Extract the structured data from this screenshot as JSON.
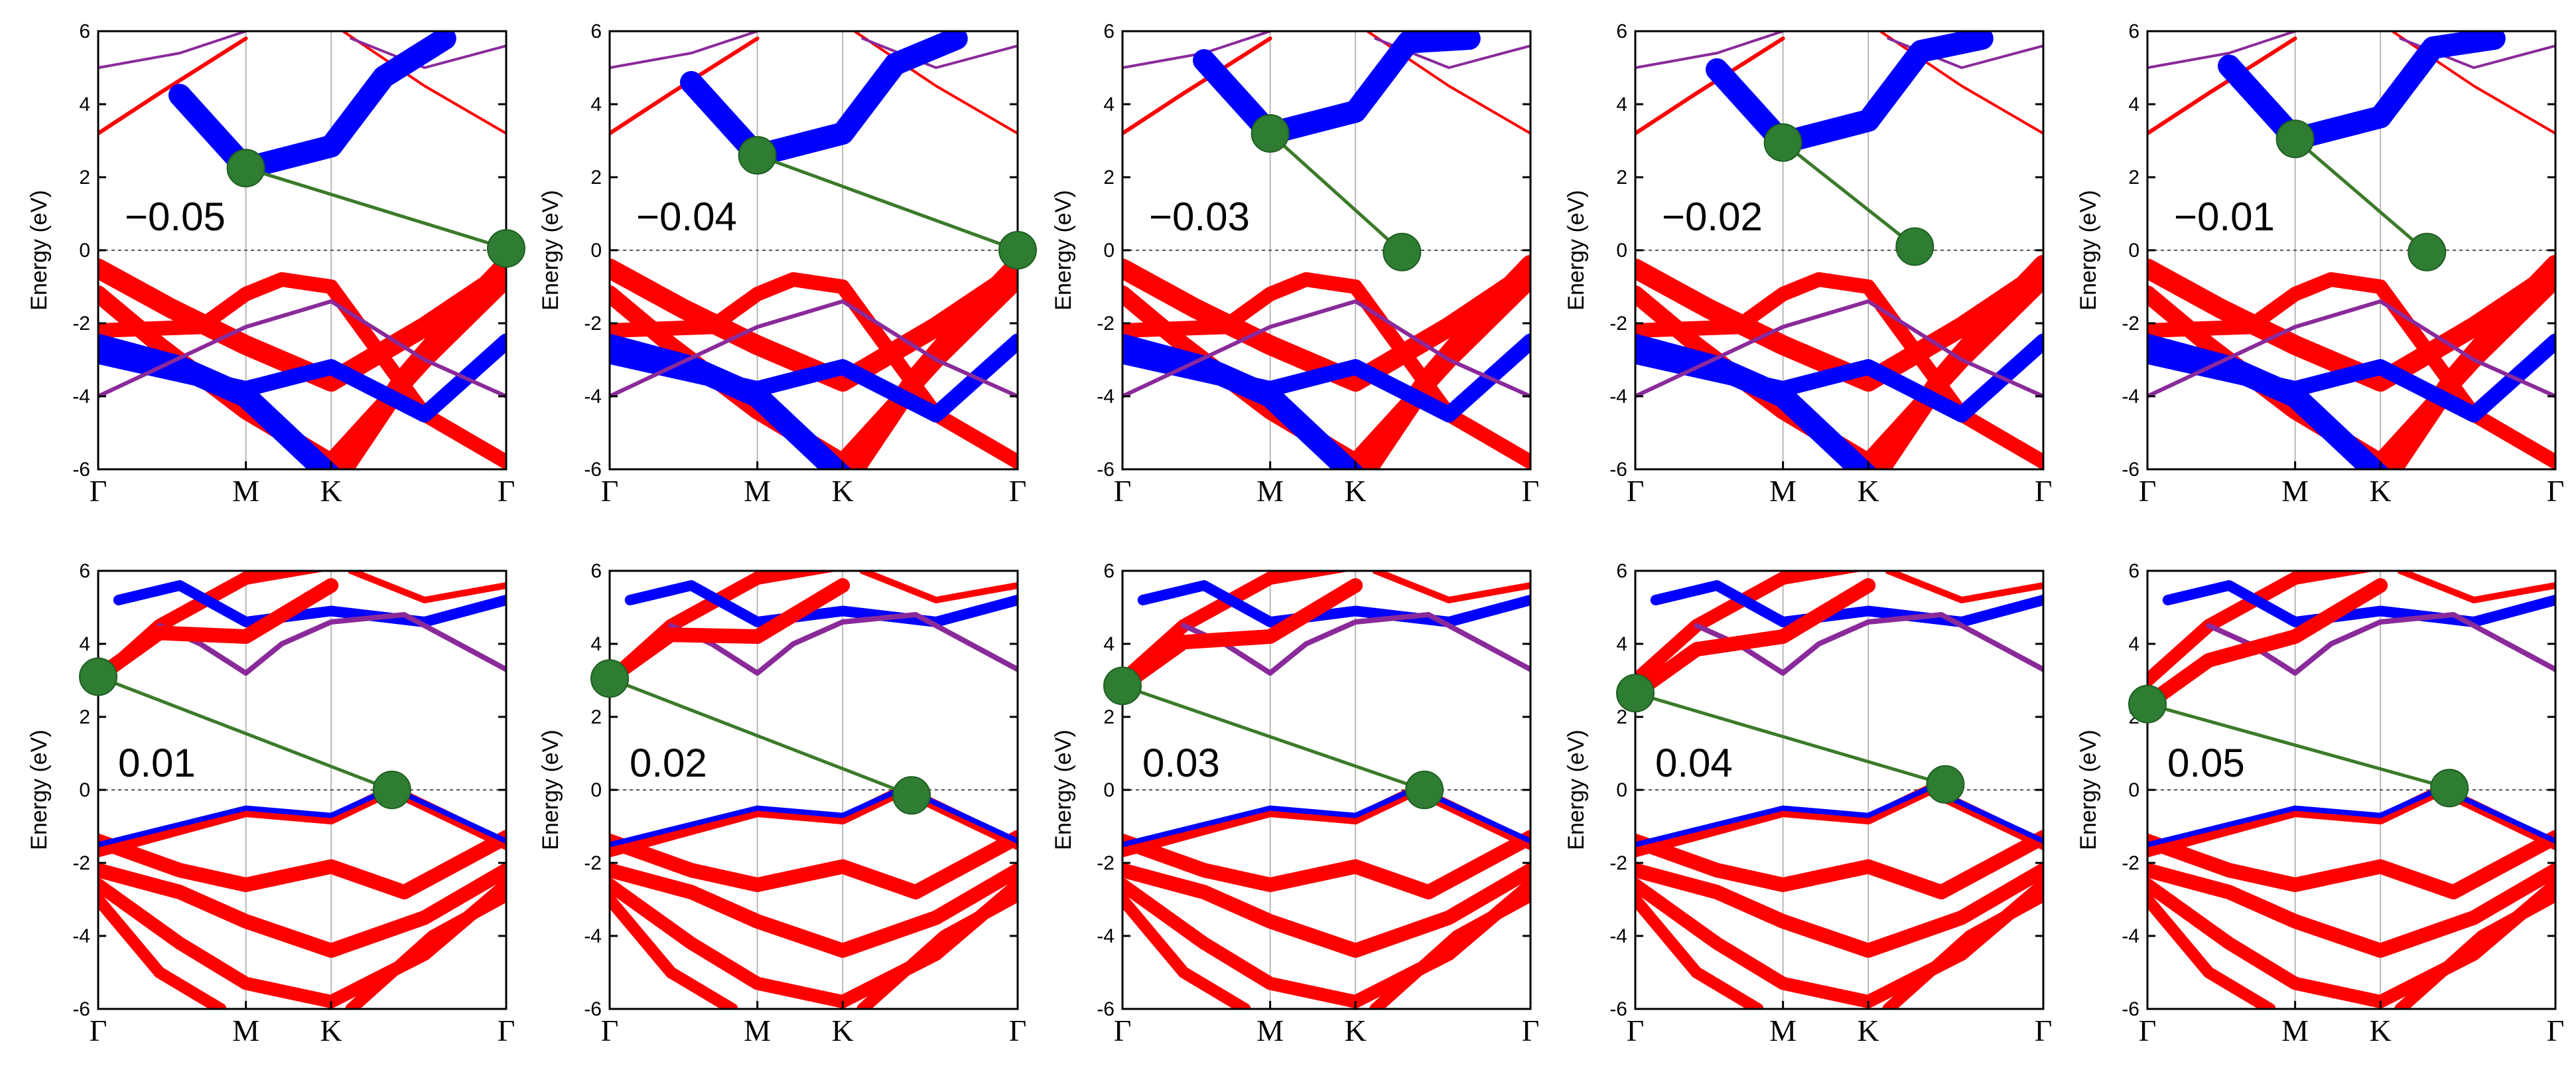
{
  "figure": {
    "rows": 2,
    "cols": 5
  },
  "chart_data": {
    "type": "line",
    "ylabel": "Energy (eV)",
    "ylim": [
      -6,
      6
    ],
    "yticks": [
      -6,
      -4,
      -2,
      0,
      2,
      4,
      6
    ],
    "ytick_labels": [
      "-6",
      "-4",
      "-2",
      "0",
      "2",
      "4",
      "6"
    ],
    "xticks": [
      "Γ",
      "M",
      "K",
      "Γ"
    ],
    "xtick_positions": [
      0,
      0.362,
      0.571,
      1
    ],
    "fermi_level": 0,
    "colors": {
      "band_a": "#ff0000",
      "band_b": "#0000ff",
      "transition": "#3b7a2a",
      "marker": "#2e7d32"
    },
    "panels": [
      {
        "label": "−0.05",
        "vbm": [
          1.0,
          0.05
        ],
        "cbm": [
          0.362,
          2.25
        ]
      },
      {
        "label": "−0.04",
        "vbm": [
          1.0,
          0.0
        ],
        "cbm": [
          0.362,
          2.6
        ]
      },
      {
        "label": "−0.03",
        "vbm": [
          0.685,
          -0.05
        ],
        "cbm": [
          0.362,
          3.2
        ]
      },
      {
        "label": "−0.02",
        "vbm": [
          0.685,
          0.1
        ],
        "cbm": [
          0.362,
          2.95
        ]
      },
      {
        "label": "−0.01",
        "vbm": [
          0.685,
          -0.05
        ],
        "cbm": [
          0.362,
          3.05
        ]
      },
      {
        "label": "0.01",
        "vbm": [
          0.72,
          0.0
        ],
        "cbm": [
          0.0,
          3.1
        ]
      },
      {
        "label": "0.02",
        "vbm": [
          0.74,
          -0.15
        ],
        "cbm": [
          0.0,
          3.05
        ]
      },
      {
        "label": "0.03",
        "vbm": [
          0.74,
          0.0
        ],
        "cbm": [
          0.0,
          2.85
        ]
      },
      {
        "label": "0.04",
        "vbm": [
          0.76,
          0.15
        ],
        "cbm": [
          0.0,
          2.65
        ]
      },
      {
        "label": "0.05",
        "vbm": [
          0.74,
          0.05
        ],
        "cbm": [
          0.0,
          2.35
        ]
      }
    ]
  }
}
